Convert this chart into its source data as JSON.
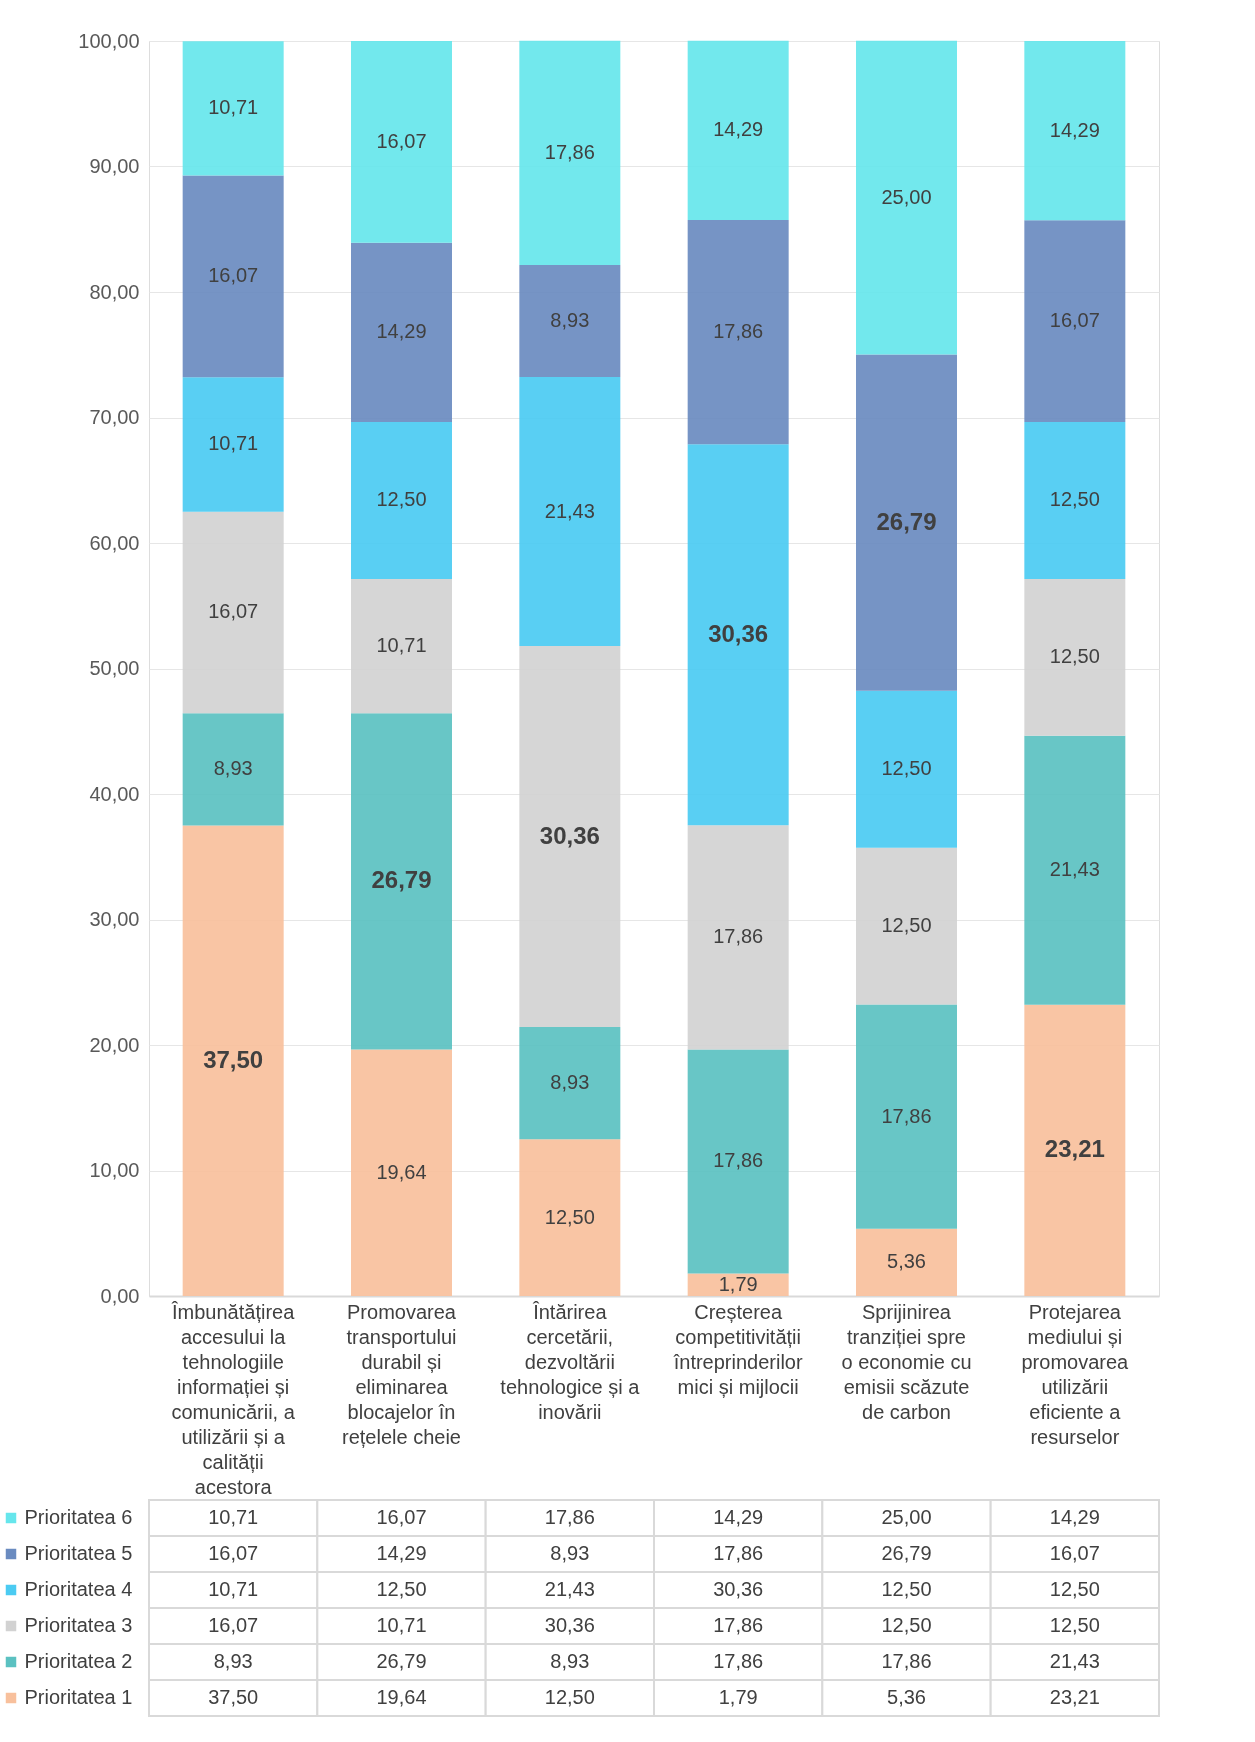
{
  "chart_data": {
    "type": "bar",
    "stacked": true,
    "categories": [
      "Îmbunătățirea accesului la tehnologiile informației și comunicării, a utilizării și a calității acestora",
      "Promovarea transportului durabil și eliminarea blocajelor în rețelele cheie",
      "Întărirea cercetării, dezvoltării tehnologice și a inovării",
      "Creșterea competitivității întreprinderilor mici și mijlocii",
      "Sprijinirea tranziției spre o economie cu emisii scăzute de carbon",
      "Protejarea mediului și promovarea utilizării eficiente a resurselor"
    ],
    "series": [
      {
        "name": "Prioritatea 1",
        "color": "#f8c09c",
        "values": [
          37.5,
          19.64,
          12.5,
          1.79,
          5.36,
          23.21
        ],
        "value_labels": [
          "37,50",
          "19,64",
          "12,50",
          "1,79",
          "5,36",
          "23,21"
        ]
      },
      {
        "name": "Prioritatea 2",
        "color": "#5bc1c1",
        "values": [
          8.93,
          26.79,
          8.93,
          17.86,
          17.86,
          21.43
        ],
        "value_labels": [
          "8,93",
          "26,79",
          "8,93",
          "17,86",
          "17,86",
          "21,43"
        ]
      },
      {
        "name": "Prioritatea 3",
        "color": "#d2d2d2",
        "values": [
          16.07,
          10.71,
          30.36,
          17.86,
          12.5,
          12.5
        ],
        "value_labels": [
          "16,07",
          "10,71",
          "30,36",
          "17,86",
          "12,50",
          "12,50"
        ]
      },
      {
        "name": "Prioritatea 4",
        "color": "#4bcbf2",
        "values": [
          10.71,
          12.5,
          21.43,
          30.36,
          12.5,
          12.5
        ],
        "value_labels": [
          "10,71",
          "12,50",
          "21,43",
          "30,36",
          "12,50",
          "12,50"
        ]
      },
      {
        "name": "Prioritatea 5",
        "color": "#6a8bc0",
        "values": [
          16.07,
          14.29,
          8.93,
          17.86,
          26.79,
          16.07
        ],
        "value_labels": [
          "16,07",
          "14,29",
          "8,93",
          "17,86",
          "26,79",
          "16,07"
        ]
      },
      {
        "name": "Prioritatea 6",
        "color": "#66e6ec",
        "values": [
          10.71,
          16.07,
          17.86,
          14.29,
          25.0,
          14.29
        ],
        "value_labels": [
          "10,71",
          "16,07",
          "17,86",
          "14,29",
          "25,00",
          "14,29"
        ]
      }
    ],
    "ylim": [
      0,
      100
    ],
    "yticks": [
      {
        "value": 0,
        "label": "0,00"
      },
      {
        "value": 10,
        "label": "10,00"
      },
      {
        "value": 20,
        "label": "20,00"
      },
      {
        "value": 30,
        "label": "30,00"
      },
      {
        "value": 40,
        "label": "40,00"
      },
      {
        "value": 50,
        "label": "50,00"
      },
      {
        "value": 60,
        "label": "60,00"
      },
      {
        "value": 70,
        "label": "70,00"
      },
      {
        "value": 80,
        "label": "80,00"
      },
      {
        "value": 90,
        "label": "90,00"
      },
      {
        "value": 100,
        "label": "100,00"
      }
    ],
    "grid": "y",
    "legend": "bottom"
  }
}
